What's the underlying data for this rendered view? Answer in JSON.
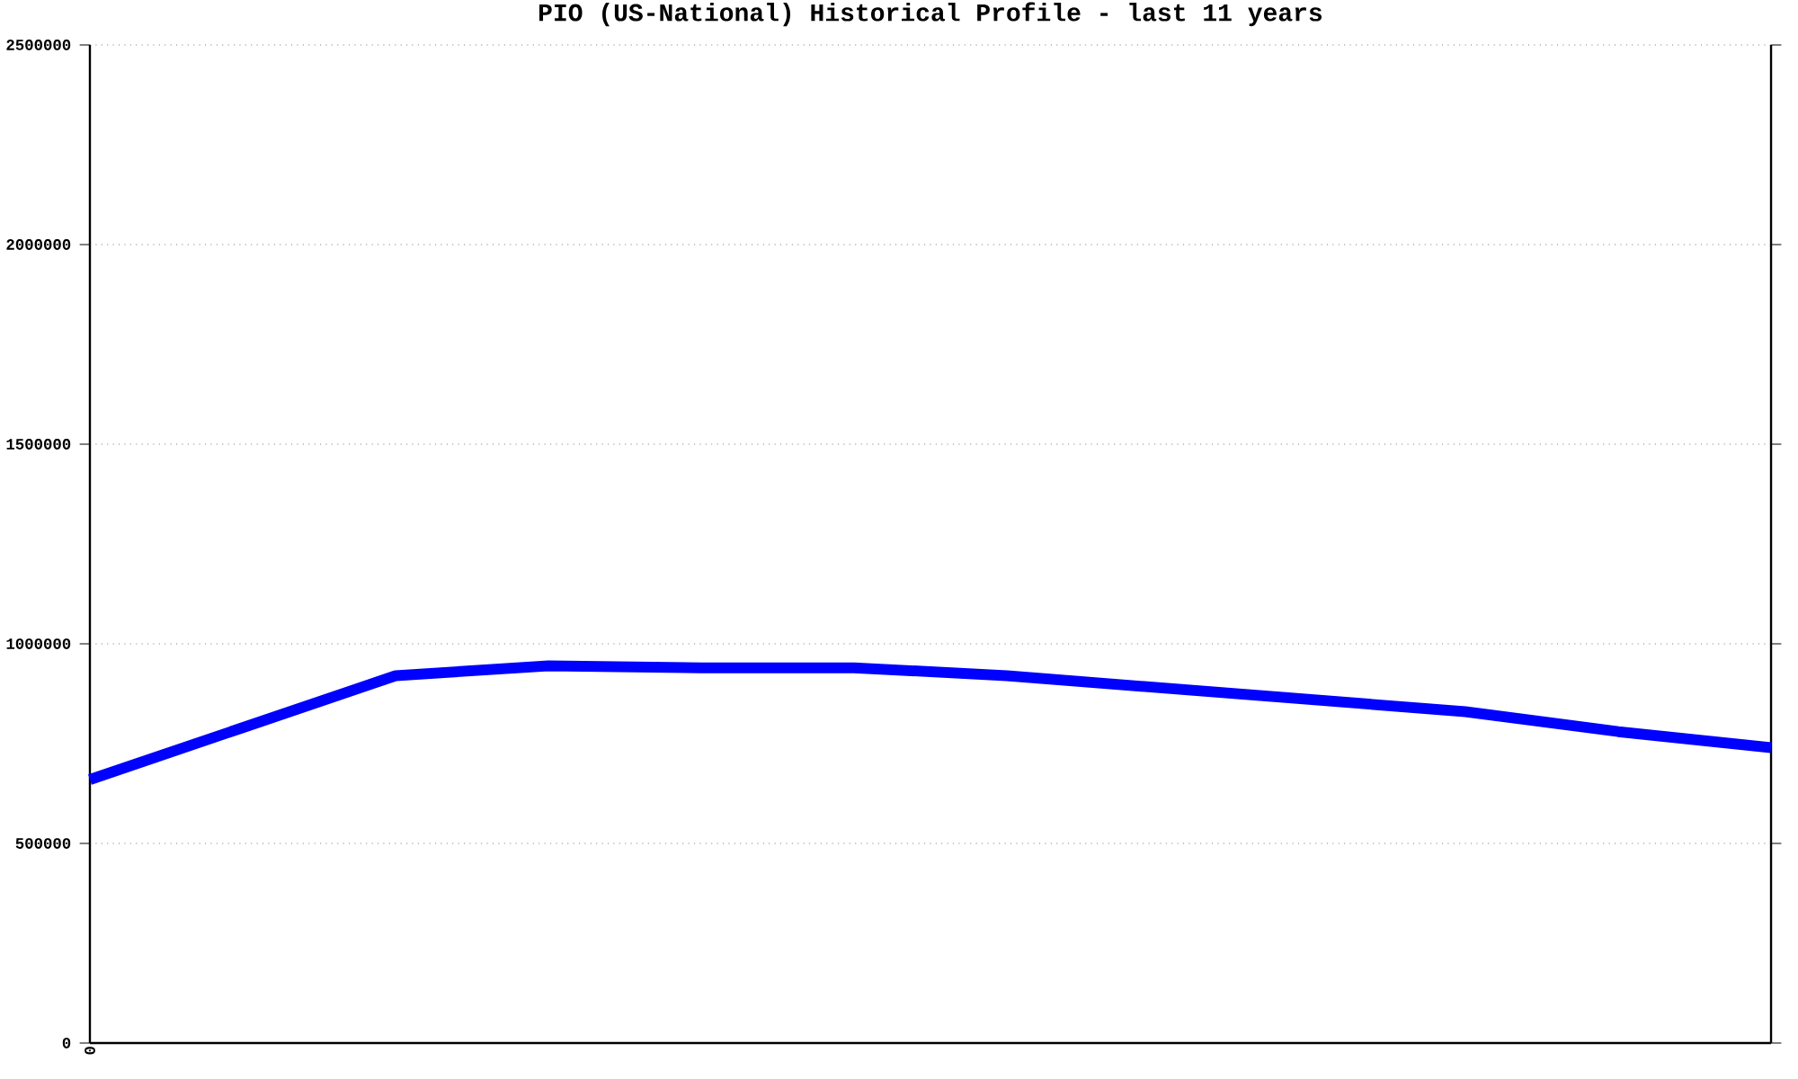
{
  "chart_data": {
    "type": "line",
    "title": "PIO (US-National) Historical Profile - last 11 years",
    "categories": [
      null,
      null,
      null,
      null,
      null,
      null,
      null,
      null,
      null,
      null,
      null,
      null
    ],
    "series": [
      {
        "color": "#0000ff",
        "values": [
          660000,
          790000,
          920000,
          945000,
          940000,
          940000,
          920000,
          890000,
          860000,
          830000,
          780000,
          740000
        ]
      }
    ],
    "ylim": [
      0,
      2500000
    ],
    "yticks": [
      0,
      500000,
      1000000,
      1500000,
      2000000,
      2500000
    ],
    "annotations": [
      "0"
    ],
    "grid": "y",
    "marker": "none",
    "line_style": "solid"
  }
}
